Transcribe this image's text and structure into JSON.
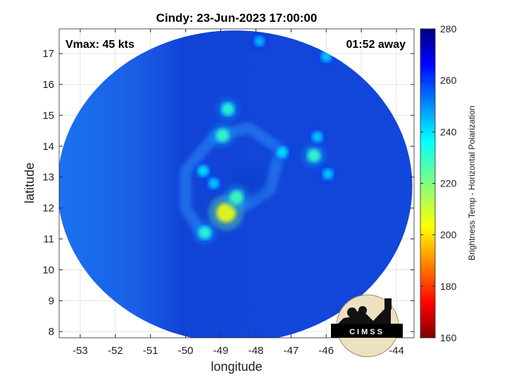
{
  "chart_data": {
    "type": "heatmap",
    "title": "Cindy: 23-Jun-2023 17:00:00",
    "xlabel": "longitude",
    "ylabel": "latitude",
    "xlim": [
      -53.6,
      -43.5
    ],
    "ylim": [
      7.8,
      17.8
    ],
    "xticks": [
      -53,
      -52,
      -51,
      -50,
      -49,
      -48,
      -47,
      -46,
      -45,
      -44
    ],
    "yticks": [
      8,
      9,
      10,
      11,
      12,
      13,
      14,
      15,
      16,
      17
    ],
    "xtick_labels": [
      "-53",
      "-52",
      "-51",
      "-50",
      "-49",
      "-48",
      "-47",
      "-46",
      "-45",
      "-44"
    ],
    "ytick_labels": [
      "8",
      "9",
      "10",
      "11",
      "12",
      "13",
      "14",
      "15",
      "16",
      "17"
    ],
    "grid": true,
    "colorbar": {
      "label": "Brightness Temp - Horizontal Polarization",
      "range": [
        160,
        280
      ],
      "ticks": [
        160,
        180,
        200,
        220,
        240,
        260,
        280
      ],
      "tick_labels": [
        "160",
        "180",
        "200",
        "220",
        "240",
        "260",
        "280"
      ],
      "colormap": "jet"
    },
    "swath": {
      "center_lon": -48.6,
      "center_lat": 12.7,
      "radius_deg": 5.05,
      "background_temp": 258
    },
    "features": [
      {
        "lon": -48.85,
        "lat": 11.85,
        "temp": 205
      },
      {
        "lon": -48.55,
        "lat": 12.35,
        "temp": 228
      },
      {
        "lon": -49.45,
        "lat": 11.2,
        "temp": 232
      },
      {
        "lon": -48.95,
        "lat": 14.35,
        "temp": 230
      },
      {
        "lon": -48.8,
        "lat": 15.2,
        "temp": 232
      },
      {
        "lon": -46.35,
        "lat": 13.7,
        "temp": 230
      },
      {
        "lon": -46.25,
        "lat": 14.3,
        "temp": 242
      },
      {
        "lon": -45.95,
        "lat": 13.1,
        "temp": 242
      },
      {
        "lon": -47.25,
        "lat": 13.8,
        "temp": 240
      },
      {
        "lon": -49.5,
        "lat": 13.2,
        "temp": 240
      },
      {
        "lon": -49.2,
        "lat": 12.8,
        "temp": 242
      },
      {
        "lon": -47.9,
        "lat": 17.4,
        "temp": 244
      },
      {
        "lon": -46.0,
        "lat": 16.9,
        "temp": 242
      }
    ]
  },
  "annotations": {
    "vmax": "Vmax: 45 kts",
    "away": "01:52 away"
  },
  "logo": {
    "text": "CIMSS"
  }
}
